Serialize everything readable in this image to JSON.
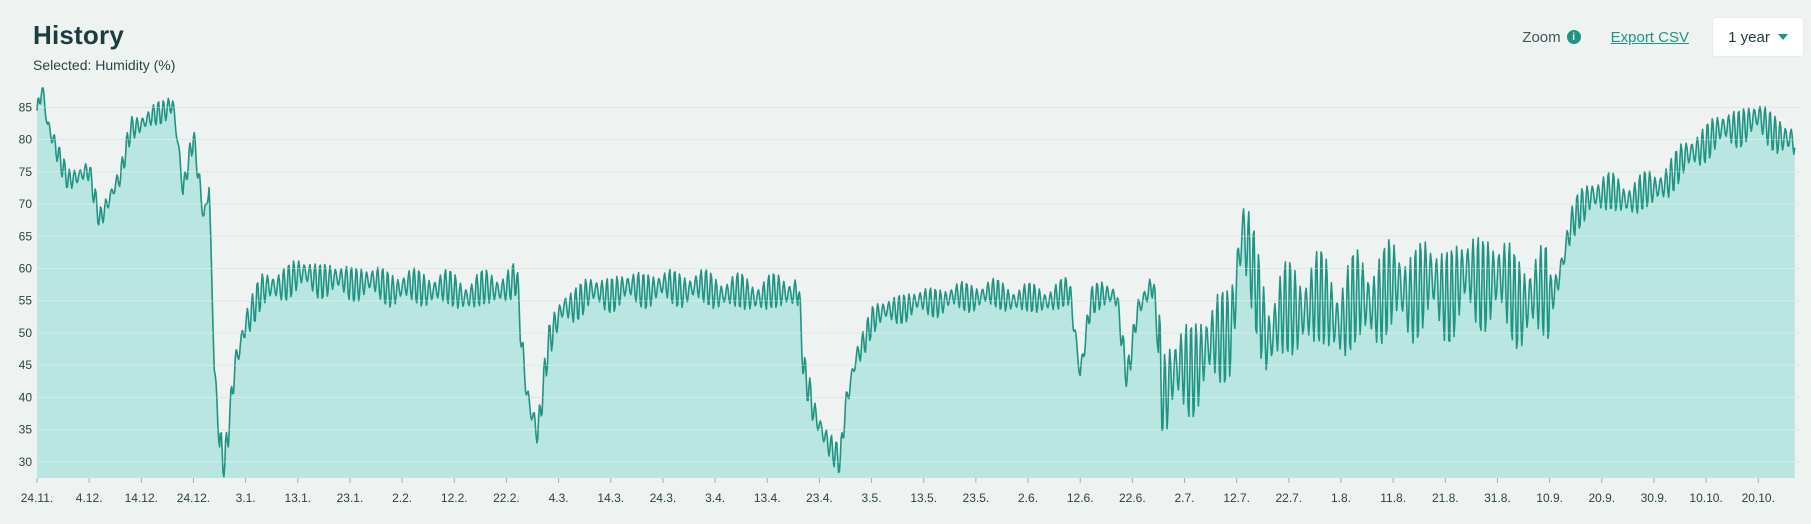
{
  "header": {
    "title": "History",
    "selected": "Selected: Humidity (%)"
  },
  "toolbar": {
    "zoom_label": "Zoom",
    "info_glyph": "i",
    "export_label": "Export CSV",
    "range_label": "1 year"
  },
  "colors": {
    "line": "#1f9483",
    "fill": "#b9e6e0",
    "grid": "#d3dcdb",
    "background": "#eef3f2"
  },
  "chart_data": {
    "type": "area",
    "title": "",
    "xlabel": "",
    "ylabel": "",
    "ylim": [
      27.5,
      88
    ],
    "grid": true,
    "y_ticks": [
      30,
      35,
      40,
      45,
      50,
      55,
      60,
      65,
      70,
      75,
      80,
      85
    ],
    "x_tick_labels": [
      "24.11.",
      "4.12.",
      "14.12.",
      "24.12.",
      "3.1.",
      "13.1.",
      "23.1.",
      "2.2.",
      "12.2.",
      "22.2.",
      "4.3.",
      "14.3.",
      "24.3.",
      "3.4.",
      "13.4.",
      "23.4.",
      "3.5.",
      "13.5.",
      "23.5.",
      "2.6.",
      "12.6.",
      "22.6.",
      "2.7.",
      "12.7.",
      "22.7.",
      "1.8.",
      "11.8.",
      "21.8.",
      "31.8.",
      "10.9.",
      "20.9.",
      "30.9.",
      "10.10.",
      "20.10."
    ],
    "series": [
      {
        "name": "Humidity (%)",
        "points": [
          [
            "2022-11-24",
            84
          ],
          [
            "2022-11-25",
            88
          ],
          [
            "2022-11-26",
            82
          ],
          [
            "2022-11-28",
            78
          ],
          [
            "2022-11-30",
            74
          ],
          [
            "2022-12-02",
            74
          ],
          [
            "2022-12-04",
            75
          ],
          [
            "2022-12-06",
            68
          ],
          [
            "2022-12-08",
            71
          ],
          [
            "2022-12-10",
            74
          ],
          [
            "2022-12-12",
            82
          ],
          [
            "2022-12-15",
            83
          ],
          [
            "2022-12-18",
            84
          ],
          [
            "2022-12-20",
            86
          ],
          [
            "2022-12-21",
            80
          ],
          [
            "2022-12-22",
            72
          ],
          [
            "2022-12-23",
            76
          ],
          [
            "2022-12-24",
            80
          ],
          [
            "2022-12-25",
            74
          ],
          [
            "2022-12-26",
            68
          ],
          [
            "2022-12-27",
            73
          ],
          [
            "2022-12-28",
            45
          ],
          [
            "2022-12-29",
            33
          ],
          [
            "2022-12-30",
            29
          ],
          [
            "2022-12-31",
            37
          ],
          [
            "2023-01-01",
            45
          ],
          [
            "2023-01-03",
            52
          ],
          [
            "2023-01-06",
            56
          ],
          [
            "2023-01-10",
            58
          ],
          [
            "2023-01-15",
            59
          ],
          [
            "2023-01-20",
            58
          ],
          [
            "2023-01-25",
            58
          ],
          [
            "2023-02-01",
            57
          ],
          [
            "2023-02-08",
            57
          ],
          [
            "2023-02-15",
            56
          ],
          [
            "2023-02-20",
            57
          ],
          [
            "2023-02-24",
            58
          ],
          [
            "2023-02-25",
            47
          ],
          [
            "2023-02-26",
            40
          ],
          [
            "2023-02-28",
            35
          ],
          [
            "2023-03-02",
            48
          ],
          [
            "2023-03-05",
            54
          ],
          [
            "2023-03-10",
            56
          ],
          [
            "2023-03-20",
            57
          ],
          [
            "2023-03-30",
            57
          ],
          [
            "2023-04-08",
            56
          ],
          [
            "2023-04-15",
            56
          ],
          [
            "2023-04-19",
            57
          ],
          [
            "2023-04-20",
            44
          ],
          [
            "2023-04-22",
            37
          ],
          [
            "2023-04-25",
            33
          ],
          [
            "2023-04-27",
            30
          ],
          [
            "2023-04-28",
            38
          ],
          [
            "2023-04-30",
            46
          ],
          [
            "2023-05-03",
            52
          ],
          [
            "2023-05-08",
            54
          ],
          [
            "2023-05-15",
            55
          ],
          [
            "2023-05-25",
            56
          ],
          [
            "2023-06-03",
            55
          ],
          [
            "2023-06-10",
            56
          ],
          [
            "2023-06-12",
            44
          ],
          [
            "2023-06-14",
            55
          ],
          [
            "2023-06-19",
            56
          ],
          [
            "2023-06-21",
            43
          ],
          [
            "2023-06-23",
            53
          ],
          [
            "2023-06-26",
            58
          ],
          [
            "2023-06-28",
            40
          ],
          [
            "2023-07-02",
            45
          ],
          [
            "2023-07-07",
            47
          ],
          [
            "2023-07-11",
            52
          ],
          [
            "2023-07-13",
            65
          ],
          [
            "2023-07-18",
            50
          ],
          [
            "2023-07-25",
            55
          ],
          [
            "2023-08-01",
            53
          ],
          [
            "2023-08-08",
            56
          ],
          [
            "2023-08-15",
            57
          ],
          [
            "2023-08-22",
            57
          ],
          [
            "2023-08-29",
            59
          ],
          [
            "2023-09-03",
            56
          ],
          [
            "2023-09-08",
            55
          ],
          [
            "2023-09-11",
            57
          ],
          [
            "2023-09-14",
            66
          ],
          [
            "2023-09-18",
            72
          ],
          [
            "2023-09-24",
            71
          ],
          [
            "2023-09-30",
            72
          ],
          [
            "2023-10-05",
            76
          ],
          [
            "2023-10-10",
            80
          ],
          [
            "2023-10-15",
            82
          ],
          [
            "2023-10-20",
            83
          ],
          [
            "2023-10-24",
            81
          ],
          [
            "2023-10-27",
            79
          ]
        ]
      }
    ]
  }
}
